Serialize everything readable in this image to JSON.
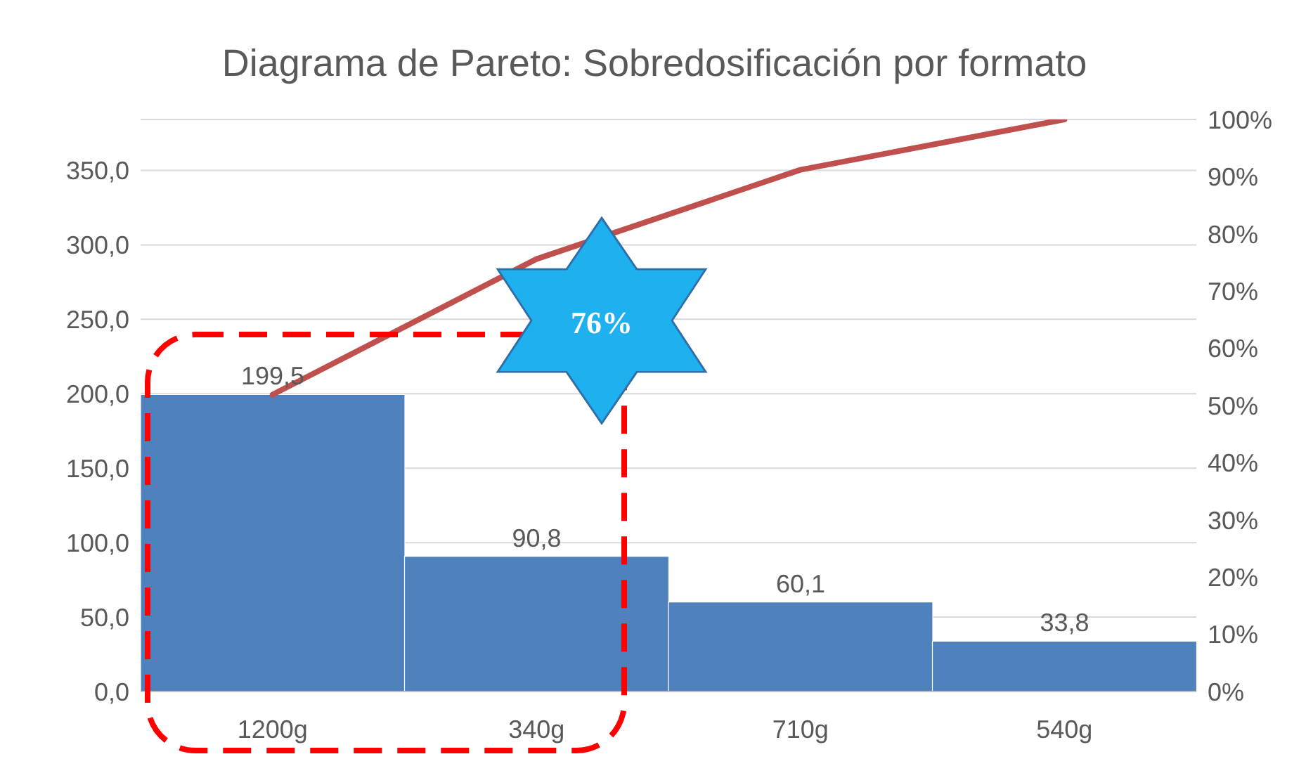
{
  "chart_data": {
    "type": "bar",
    "title": "Diagrama de Pareto: Sobredosificación por formato",
    "categories": [
      "1200g",
      "340g",
      "710g",
      "540g"
    ],
    "series": [
      {
        "color": "#4f81bd",
        "values": [
          199.5,
          90.8,
          60.1,
          33.8
        ],
        "value_labels": [
          "199,5",
          "90,8",
          "60,1",
          "33,8"
        ]
      },
      {
        "type": "line",
        "axis": "y2",
        "color": "#c0504d",
        "values": [
          51.9,
          75.6,
          91.2,
          100
        ]
      }
    ],
    "ylim": [
      0,
      384.2
    ],
    "yticks": [
      {
        "value": 0,
        "label": "0,0"
      },
      {
        "value": 50,
        "label": "50,0"
      },
      {
        "value": 100,
        "label": "100,0"
      },
      {
        "value": 150,
        "label": "150,0"
      },
      {
        "value": 200,
        "label": "200,0"
      },
      {
        "value": 250,
        "label": "250,0"
      },
      {
        "value": 300,
        "label": "300,0"
      },
      {
        "value": 350,
        "label": "350,0"
      }
    ],
    "y2lim": [
      0,
      100
    ],
    "y2ticks": [
      {
        "value": 0,
        "label": "0%"
      },
      {
        "value": 10,
        "label": "10%"
      },
      {
        "value": 20,
        "label": "20%"
      },
      {
        "value": 30,
        "label": "30%"
      },
      {
        "value": 40,
        "label": "40%"
      },
      {
        "value": 50,
        "label": "50%"
      },
      {
        "value": 60,
        "label": "60%"
      },
      {
        "value": 70,
        "label": "70%"
      },
      {
        "value": 80,
        "label": "80%"
      },
      {
        "value": 90,
        "label": "90%"
      },
      {
        "value": 100,
        "label": "100%"
      }
    ],
    "grid": "y",
    "marker": "none",
    "line_style": "solid",
    "legend": false,
    "annotations": [
      "76%"
    ]
  }
}
